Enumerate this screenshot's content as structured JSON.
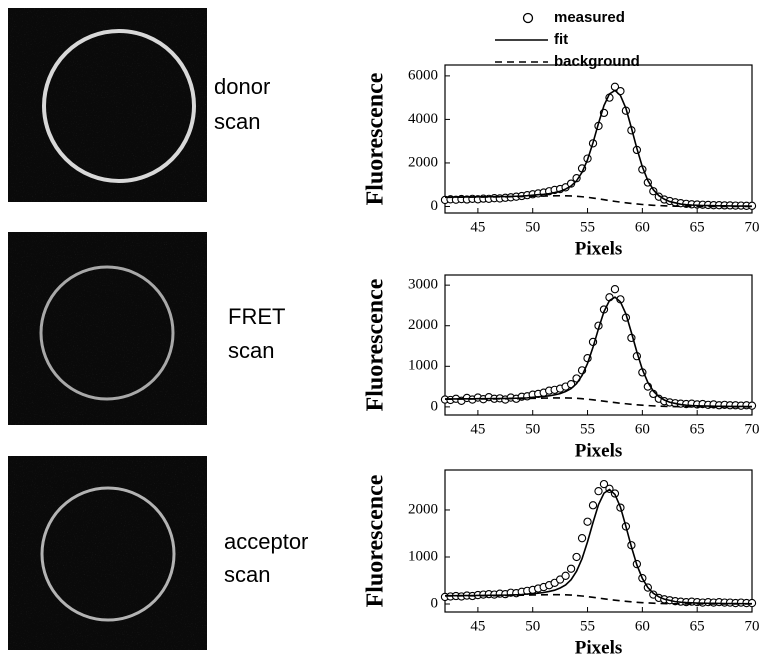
{
  "panels": [
    {
      "lines": [
        "donor",
        "scan"
      ]
    },
    {
      "lines": [
        "FRET",
        "scan"
      ]
    },
    {
      "lines": [
        "acceptor",
        "scan"
      ]
    }
  ],
  "chart_data": [
    {
      "type": "line",
      "xlabel": "Pixels",
      "ylabel": "Fluorescence",
      "x": [
        42,
        42.5,
        43,
        43.5,
        44,
        44.5,
        45,
        45.5,
        46,
        46.5,
        47,
        47.5,
        48,
        48.5,
        49,
        49.5,
        50,
        50.5,
        51,
        51.5,
        52,
        52.5,
        53,
        53.5,
        54,
        54.5,
        55,
        55.5,
        56,
        56.5,
        57,
        57.5,
        58,
        58.5,
        59,
        59.5,
        60,
        60.5,
        61,
        61.5,
        62,
        62.5,
        63,
        63.5,
        64,
        64.5,
        65,
        65.5,
        66,
        66.5,
        67,
        67.5,
        68,
        68.5,
        69,
        69.5,
        70
      ],
      "xlim": [
        42,
        70
      ],
      "xticks": [
        45,
        50,
        55,
        60,
        65,
        70
      ],
      "ylim": [
        -300,
        6500
      ],
      "yticks": [
        0,
        2000,
        4000,
        6000
      ],
      "series": [
        {
          "name": "measured",
          "marker": "circle",
          "color": "#000000",
          "values": [
            300,
            330,
            310,
            340,
            320,
            350,
            330,
            360,
            350,
            380,
            370,
            400,
            420,
            450,
            480,
            520,
            560,
            600,
            640,
            700,
            760,
            800,
            880,
            1050,
            1300,
            1750,
            2200,
            2900,
            3700,
            4300,
            5000,
            5500,
            5300,
            4400,
            3500,
            2600,
            1700,
            1100,
            700,
            450,
            320,
            250,
            190,
            150,
            120,
            100,
            90,
            80,
            70,
            60,
            60,
            50,
            50,
            40,
            40,
            30,
            30
          ]
        },
        {
          "name": "fit",
          "style": "solid",
          "color": "#000000",
          "values": [
            430,
            432,
            434,
            436,
            438,
            440,
            442,
            444,
            446,
            448,
            452,
            456,
            462,
            470,
            480,
            495,
            520,
            540,
            560,
            590,
            640,
            700,
            800,
            940,
            1180,
            1570,
            2150,
            2930,
            3820,
            4640,
            5170,
            5330,
            5100,
            4510,
            3610,
            2665,
            1820,
            1190,
            770,
            500,
            336,
            226,
            168,
            112,
            83,
            65,
            56,
            45,
            40,
            35,
            30,
            28,
            25,
            22,
            20,
            18,
            16
          ]
        },
        {
          "name": "background",
          "style": "dashed",
          "color": "#000000",
          "values": [
            420,
            422,
            424,
            426,
            428,
            430,
            432,
            434,
            436,
            438,
            441,
            444,
            447,
            451,
            456,
            461,
            467,
            473,
            479,
            485,
            490,
            492,
            490,
            482,
            470,
            447,
            420,
            387,
            350,
            310,
            270,
            235,
            200,
            170,
            140,
            115,
            90,
            70,
            55,
            42,
            30,
            22,
            15,
            10,
            7,
            5,
            4,
            3,
            2,
            2,
            1,
            1,
            1,
            0,
            0,
            0,
            0
          ]
        }
      ]
    },
    {
      "type": "line",
      "xlabel": "Pixels",
      "ylabel": "Fluorescence",
      "x": [
        42,
        42.5,
        43,
        43.5,
        44,
        44.5,
        45,
        45.5,
        46,
        46.5,
        47,
        47.5,
        48,
        48.5,
        49,
        49.5,
        50,
        50.5,
        51,
        51.5,
        52,
        52.5,
        53,
        53.5,
        54,
        54.5,
        55,
        55.5,
        56,
        56.5,
        57,
        57.5,
        58,
        58.5,
        59,
        59.5,
        60,
        60.5,
        61,
        61.5,
        62,
        62.5,
        63,
        63.5,
        64,
        64.5,
        65,
        65.5,
        66,
        66.5,
        67,
        67.5,
        68,
        68.5,
        69,
        69.5,
        70
      ],
      "xlim": [
        42,
        70
      ],
      "xticks": [
        45,
        50,
        55,
        60,
        65,
        70
      ],
      "ylim": [
        -200,
        3250
      ],
      "yticks": [
        0,
        1000,
        2000,
        3000
      ],
      "series": [
        {
          "marker": "circle",
          "color": "#000000",
          "values": [
            180,
            170,
            200,
            150,
            220,
            180,
            230,
            190,
            240,
            200,
            210,
            180,
            230,
            200,
            250,
            260,
            300,
            320,
            350,
            400,
            420,
            450,
            500,
            560,
            700,
            900,
            1200,
            1600,
            2000,
            2400,
            2700,
            2900,
            2650,
            2200,
            1700,
            1250,
            850,
            500,
            320,
            200,
            140,
            110,
            90,
            80,
            70,
            80,
            60,
            70,
            50,
            60,
            40,
            50,
            40,
            40,
            30,
            40,
            30
          ]
        },
        {
          "style": "solid",
          "color": "#000000",
          "values": [
            195,
            196,
            197,
            198,
            199,
            200,
            201,
            202,
            203,
            204,
            206,
            208,
            210,
            213,
            217,
            222,
            237,
            247,
            257,
            272,
            297,
            327,
            379,
            451,
            574,
            774,
            1071,
            1471,
            1927,
            2348,
            2620,
            2704,
            2589,
            2290,
            1833,
            1352,
            923,
            603,
            389,
            253,
            170,
            114,
            85,
            57,
            42,
            33,
            28,
            23,
            20,
            18,
            15,
            14,
            12,
            11,
            10,
            9,
            8
          ]
        },
        {
          "style": "dashed",
          "color": "#000000",
          "values": [
            189,
            190,
            191,
            192,
            193,
            194,
            194,
            195,
            196,
            197,
            198,
            200,
            201,
            203,
            205,
            207,
            210,
            213,
            216,
            218,
            221,
            221,
            221,
            217,
            212,
            201,
            189,
            174,
            158,
            140,
            122,
            106,
            90,
            77,
            63,
            52,
            41,
            32,
            25,
            19,
            14,
            10,
            7,
            5,
            3,
            2,
            2,
            1,
            1,
            1,
            0,
            0,
            0,
            0,
            0,
            0,
            0
          ]
        }
      ]
    },
    {
      "type": "line",
      "xlabel": "Pixels",
      "ylabel": "Fluorescence",
      "x": [
        42,
        42.5,
        43,
        43.5,
        44,
        44.5,
        45,
        45.5,
        46,
        46.5,
        47,
        47.5,
        48,
        48.5,
        49,
        49.5,
        50,
        50.5,
        51,
        51.5,
        52,
        52.5,
        53,
        53.5,
        54,
        54.5,
        55,
        55.5,
        56,
        56.5,
        57,
        57.5,
        58,
        58.5,
        59,
        59.5,
        60,
        60.5,
        61,
        61.5,
        62,
        62.5,
        63,
        63.5,
        64,
        64.5,
        65,
        65.5,
        66,
        66.5,
        67,
        67.5,
        68,
        68.5,
        69,
        69.5,
        70
      ],
      "xlim": [
        42,
        70
      ],
      "xticks": [
        45,
        50,
        55,
        60,
        65,
        70
      ],
      "ylim": [
        -170,
        2850
      ],
      "yticks": [
        0,
        1000,
        2000
      ],
      "series": [
        {
          "marker": "circle",
          "color": "#000000",
          "values": [
            150,
            160,
            170,
            160,
            180,
            170,
            190,
            200,
            210,
            200,
            220,
            210,
            240,
            230,
            260,
            280,
            300,
            330,
            360,
            400,
            450,
            520,
            600,
            750,
            1000,
            1400,
            1750,
            2100,
            2400,
            2550,
            2450,
            2350,
            2050,
            1650,
            1250,
            850,
            550,
            350,
            200,
            130,
            100,
            80,
            60,
            50,
            40,
            50,
            40,
            30,
            40,
            30,
            40,
            30,
            30,
            20,
            30,
            20,
            20
          ]
        },
        {
          "style": "solid",
          "color": "#000000",
          "values": [
            176,
            177,
            178,
            179,
            180,
            181,
            182,
            183,
            184,
            185,
            187,
            189,
            192,
            195,
            200,
            213,
            222,
            231,
            245,
            267,
            294,
            341,
            406,
            517,
            697,
            964,
            1324,
            1734,
            2113,
            2358,
            2434,
            2330,
            2061,
            1650,
            1217,
            831,
            543,
            350,
            228,
            153,
            103,
            77,
            51,
            38,
            30,
            25,
            21,
            18,
            16,
            14,
            13,
            11,
            10,
            9,
            8,
            7,
            7
          ]
        },
        {
          "style": "dashed",
          "color": "#000000",
          "values": [
            171,
            171,
            172,
            173,
            174,
            175,
            175,
            176,
            177,
            178,
            180,
            181,
            183,
            185,
            186,
            189,
            192,
            194,
            196,
            199,
            199,
            199,
            195,
            191,
            181,
            170,
            157,
            142,
            126,
            110,
            95,
            81,
            69,
            57,
            47,
            37,
            29,
            23,
            17,
            13,
            9,
            6,
            5,
            3,
            2,
            2,
            1,
            1,
            1,
            0,
            0,
            0,
            0,
            0,
            0,
            0,
            0
          ]
        }
      ]
    }
  ]
}
